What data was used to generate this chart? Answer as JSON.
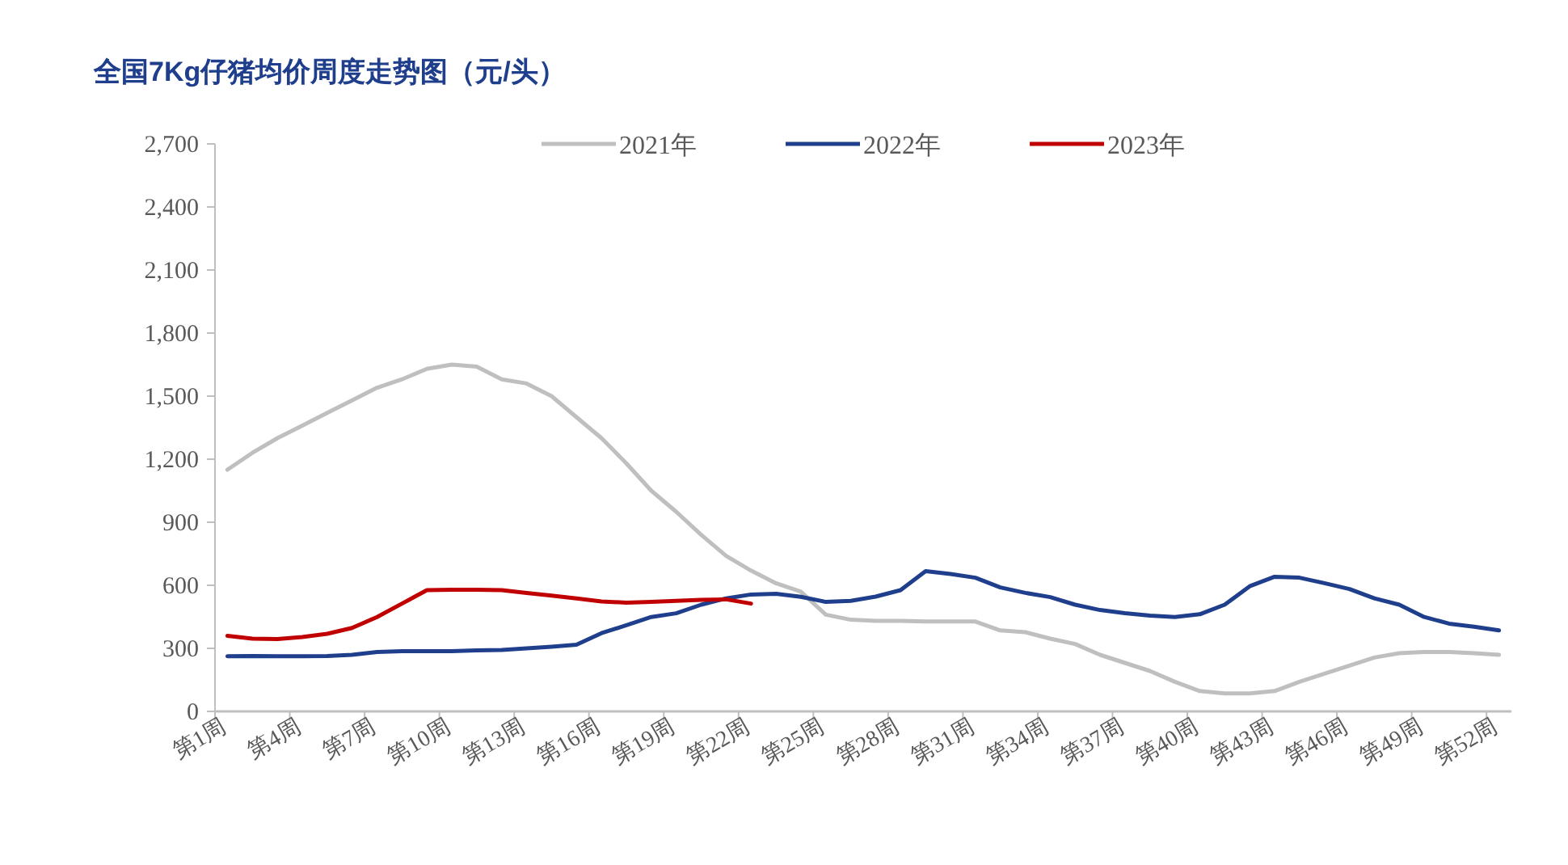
{
  "chart_data": {
    "type": "line",
    "title": "全国7Kg仔猪均价周度走势图（元/头）",
    "categories": [
      "第1周",
      null,
      null,
      "第4周",
      null,
      null,
      "第7周",
      null,
      null,
      "第10周",
      null,
      null,
      "第13周",
      null,
      null,
      "第16周",
      null,
      null,
      "第19周",
      null,
      null,
      "第22周",
      null,
      null,
      "第25周",
      null,
      null,
      "第28周",
      null,
      null,
      "第31周",
      null,
      null,
      "第34周",
      null,
      null,
      "第37周",
      null,
      null,
      "第40周",
      null,
      null,
      "第43周",
      null,
      null,
      "第46周",
      null,
      null,
      "第49周",
      null,
      null,
      "第52周"
    ],
    "series": [
      {
        "name": "2021年",
        "color": "#bfbfbf",
        "values": [
          1150,
          1230,
          1300,
          1360,
          1420,
          1480,
          1540,
          1580,
          1630,
          1650,
          1640,
          1580,
          1560,
          1500,
          1400,
          1300,
          1180,
          1050,
          950,
          840,
          740,
          670,
          610,
          570,
          460,
          436,
          431,
          431,
          428,
          428,
          428,
          385,
          377,
          346,
          321,
          269,
          231,
          192,
          141,
          97,
          85,
          85,
          97,
          141,
          179,
          218,
          256,
          277,
          282,
          282,
          277,
          269
        ]
      },
      {
        "name": "2022年",
        "color": "#1f3f8c",
        "values": [
          262,
          264,
          262,
          262,
          264,
          269,
          282,
          287,
          287,
          287,
          290,
          292,
          300,
          308,
          318,
          372,
          410,
          449,
          467,
          508,
          538,
          556,
          559,
          545,
          521,
          526,
          546,
          577,
          667,
          654,
          636,
          590,
          564,
          544,
          508,
          482,
          467,
          456,
          449,
          462,
          508,
          595,
          641,
          636,
          610,
          582,
          538,
          508,
          449,
          418,
          403,
          385
        ]
      },
      {
        "name": "2023年",
        "color": "#c00000",
        "values": [
          359,
          346,
          344,
          354,
          369,
          397,
          449,
          513,
          577,
          579,
          579,
          577,
          564,
          551,
          538,
          523,
          518,
          521,
          526,
          531,
          533,
          513,
          null,
          null,
          null,
          null,
          null,
          null,
          null,
          null,
          null,
          null,
          null,
          null,
          null,
          null,
          null,
          null,
          null,
          null,
          null,
          null,
          null,
          null,
          null,
          null,
          null,
          null,
          null,
          null,
          null,
          null
        ]
      }
    ],
    "ylim": [
      0,
      2700
    ],
    "yticks": [
      {
        "value": 0,
        "label": "0"
      },
      {
        "value": 300,
        "label": "300"
      },
      {
        "value": 600,
        "label": "600"
      },
      {
        "value": 900,
        "label": "900"
      },
      {
        "value": 1200,
        "label": "1,200"
      },
      {
        "value": 1500,
        "label": "1,500"
      },
      {
        "value": 1800,
        "label": "1,800"
      },
      {
        "value": 2100,
        "label": "2,100"
      },
      {
        "value": 2400,
        "label": "2,400"
      },
      {
        "value": 2700,
        "label": "2,700"
      }
    ],
    "legend": "top"
  }
}
